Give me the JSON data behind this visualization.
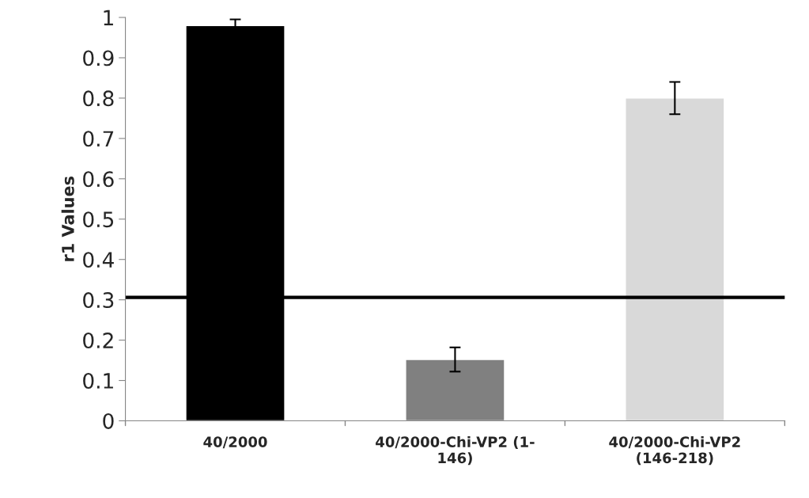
{
  "chart_data": {
    "type": "bar",
    "ylabel": "r1 Values",
    "categories": [
      "40/2000",
      "40/2000-Chi-VP2 (1-\n146)",
      "40/2000-Chi-VP2\n(146-218)"
    ],
    "values": [
      0.98,
      0.152,
      0.8
    ],
    "errors": [
      0.015,
      0.03,
      0.04
    ],
    "colors": [
      "#000000",
      "#808080",
      "#d9d9d9"
    ],
    "ylim": [
      0,
      1
    ],
    "yticks": [
      0,
      0.1,
      0.2,
      0.3,
      0.4,
      0.5,
      0.6,
      0.7,
      0.8,
      0.9,
      1
    ],
    "ref_lines": [
      {
        "axis": "y",
        "value": 0.306,
        "color": "#000000",
        "line_style": "solid"
      }
    ],
    "grid": false
  }
}
